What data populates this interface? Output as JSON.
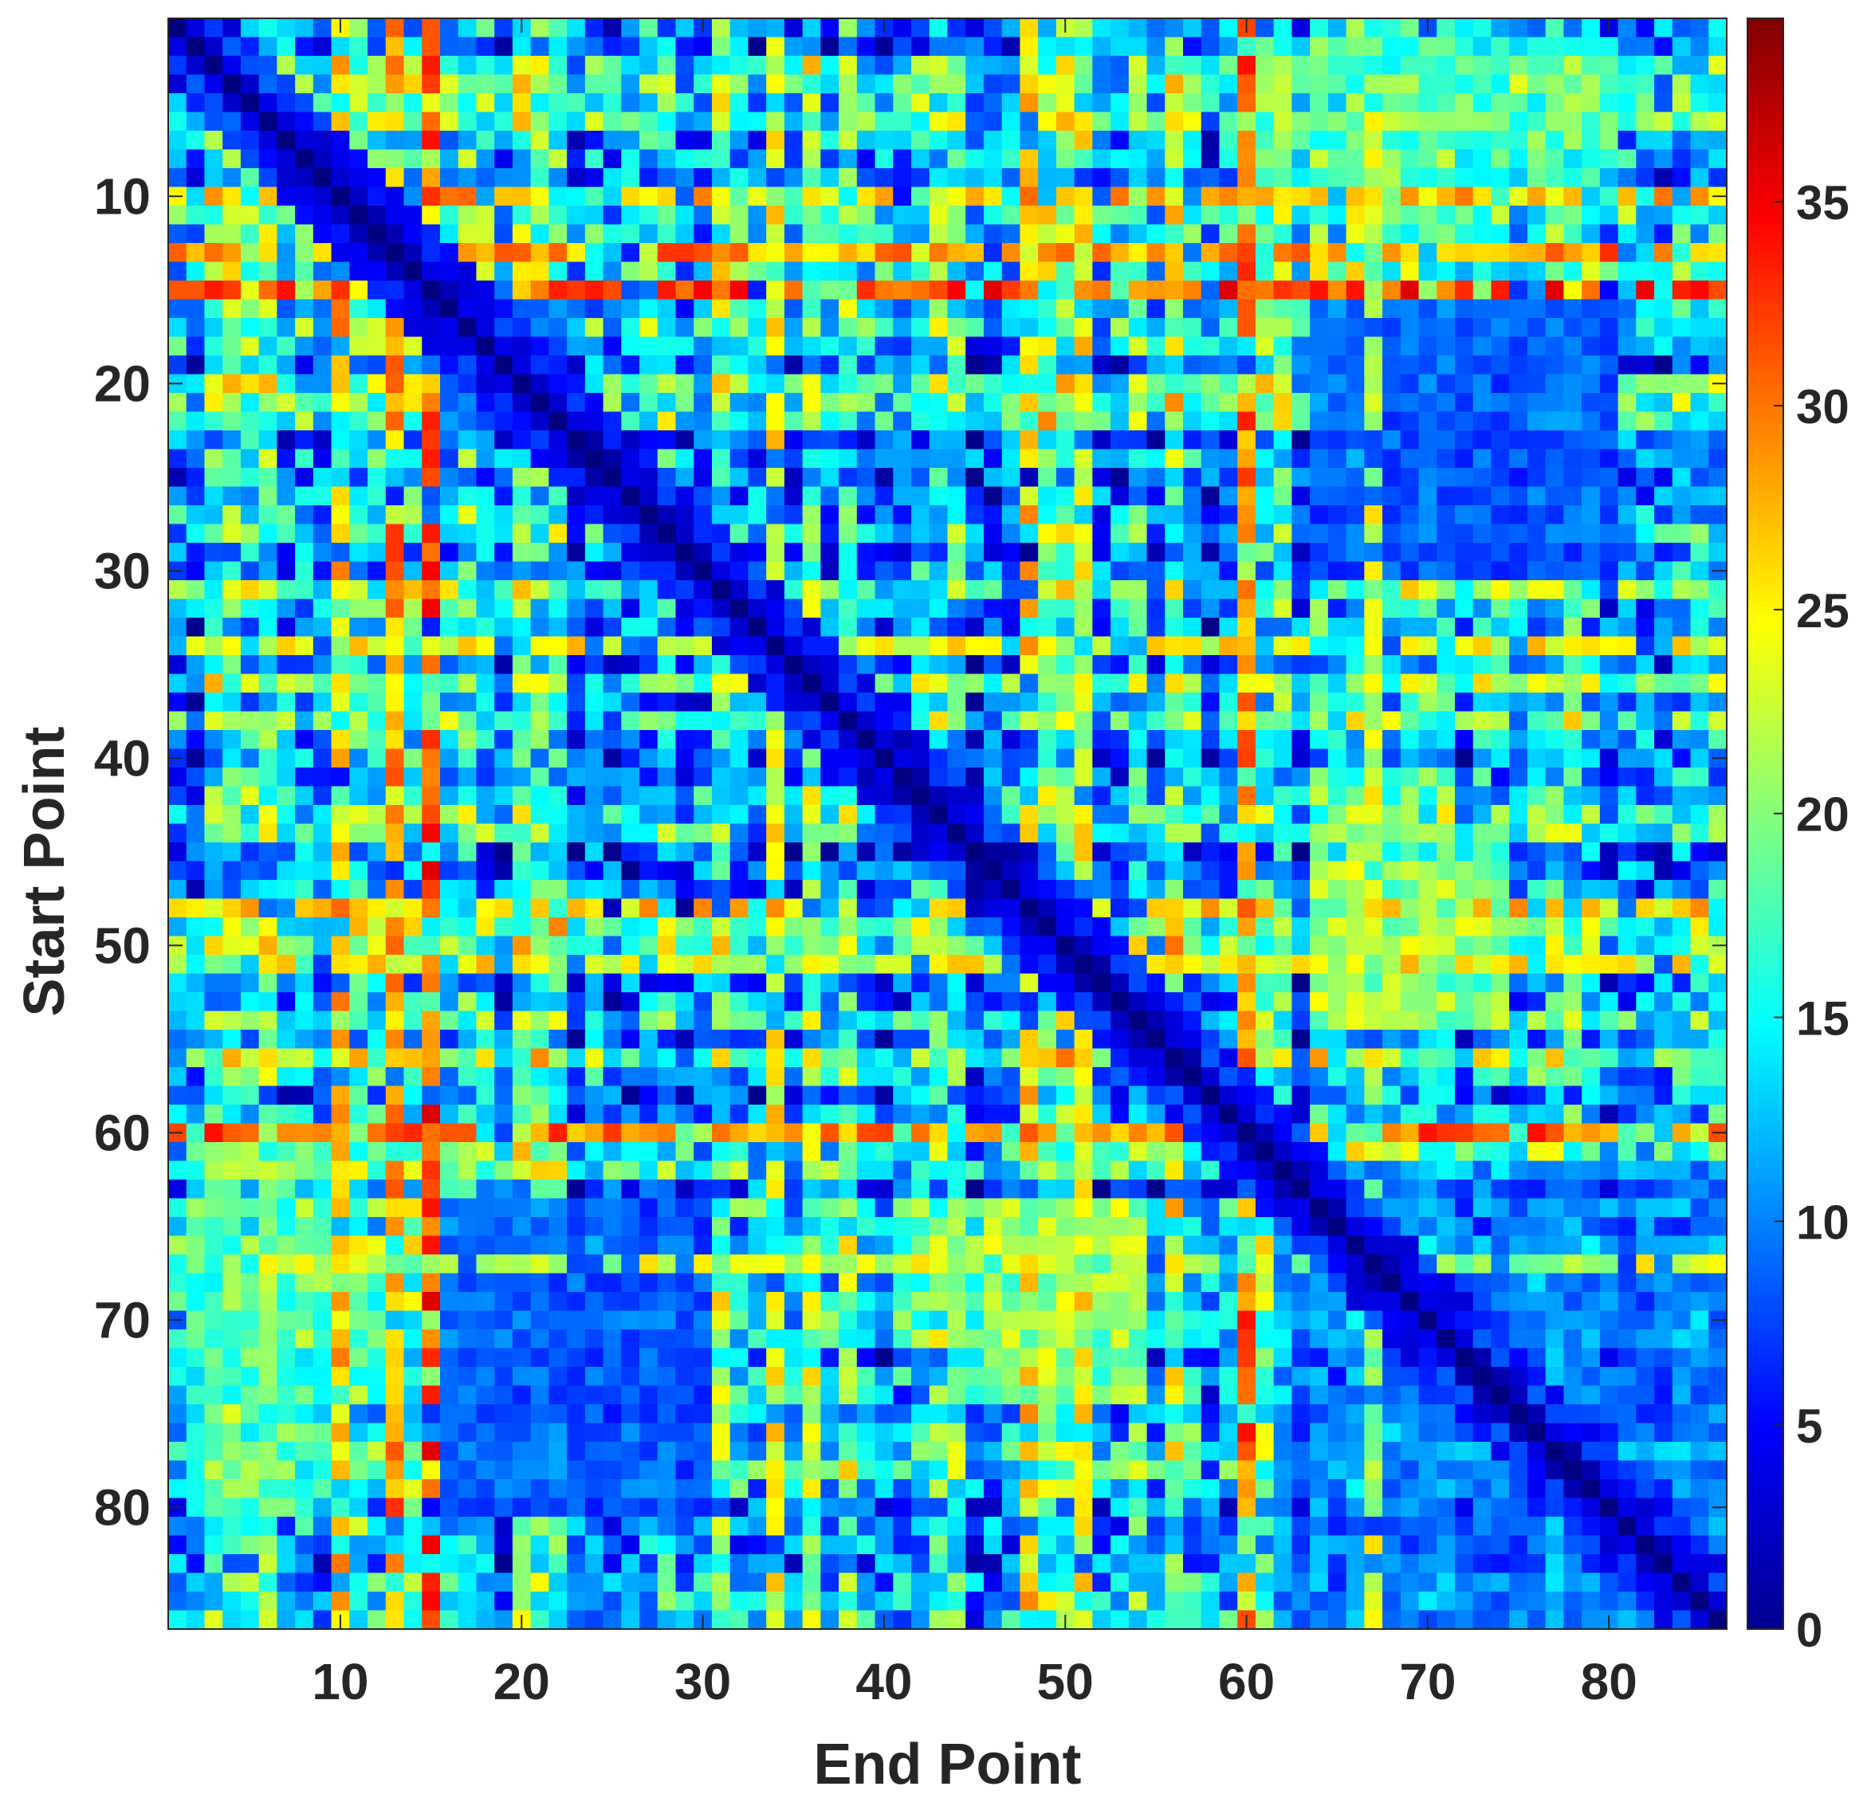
{
  "chart_data": {
    "type": "heatmap",
    "title": "",
    "xlabel": "End Point",
    "ylabel": "Start Point",
    "rows": 86,
    "cols": 86,
    "x_range": [
      1,
      86
    ],
    "y_range": [
      1,
      86
    ],
    "x_ticks": [
      10,
      20,
      30,
      40,
      50,
      60,
      70,
      80
    ],
    "y_ticks": [
      10,
      20,
      30,
      40,
      50,
      60,
      70,
      80
    ],
    "y_direction": "top-to-bottom",
    "colormap": "jet",
    "colorbar": {
      "min": 0,
      "max": 39.5,
      "ticks": [
        0,
        5,
        10,
        15,
        20,
        25,
        30,
        35
      ],
      "placement": "right"
    },
    "grid": false,
    "diagonal_value": 0,
    "hot_rows": [
      {
        "index": 10,
        "value": 27
      },
      {
        "index": 13,
        "value": 29
      },
      {
        "index": 15,
        "value": 32
      },
      {
        "index": 34,
        "value": 24
      },
      {
        "index": 48,
        "value": 26
      },
      {
        "index": 51,
        "value": 24
      },
      {
        "index": 60,
        "value": 30
      },
      {
        "index": 67,
        "value": 22
      }
    ],
    "cold_blocks": [
      {
        "rows": [
          16,
          22
        ],
        "cols": [
          16,
          22
        ],
        "value": 4
      },
      {
        "rows": [
          62,
          86
        ],
        "cols": [
          62,
          86
        ],
        "value": 7
      },
      {
        "rows": [
          16,
          30
        ],
        "cols": [
          64,
          80
        ],
        "value": 7
      },
      {
        "rows": [
          64,
          80
        ],
        "cols": [
          16,
          30
        ],
        "value": 8
      }
    ],
    "warm_blocks": [
      {
        "rows": [
          46,
          54
        ],
        "cols": [
          64,
          74
        ],
        "value": 24
      },
      {
        "rows": [
          64,
          74
        ],
        "cols": [
          44,
          54
        ],
        "value": 21
      },
      {
        "rows": [
          2,
          10
        ],
        "cols": [
          60,
          80
        ],
        "value": 20
      }
    ],
    "noise_seed": 86
  }
}
